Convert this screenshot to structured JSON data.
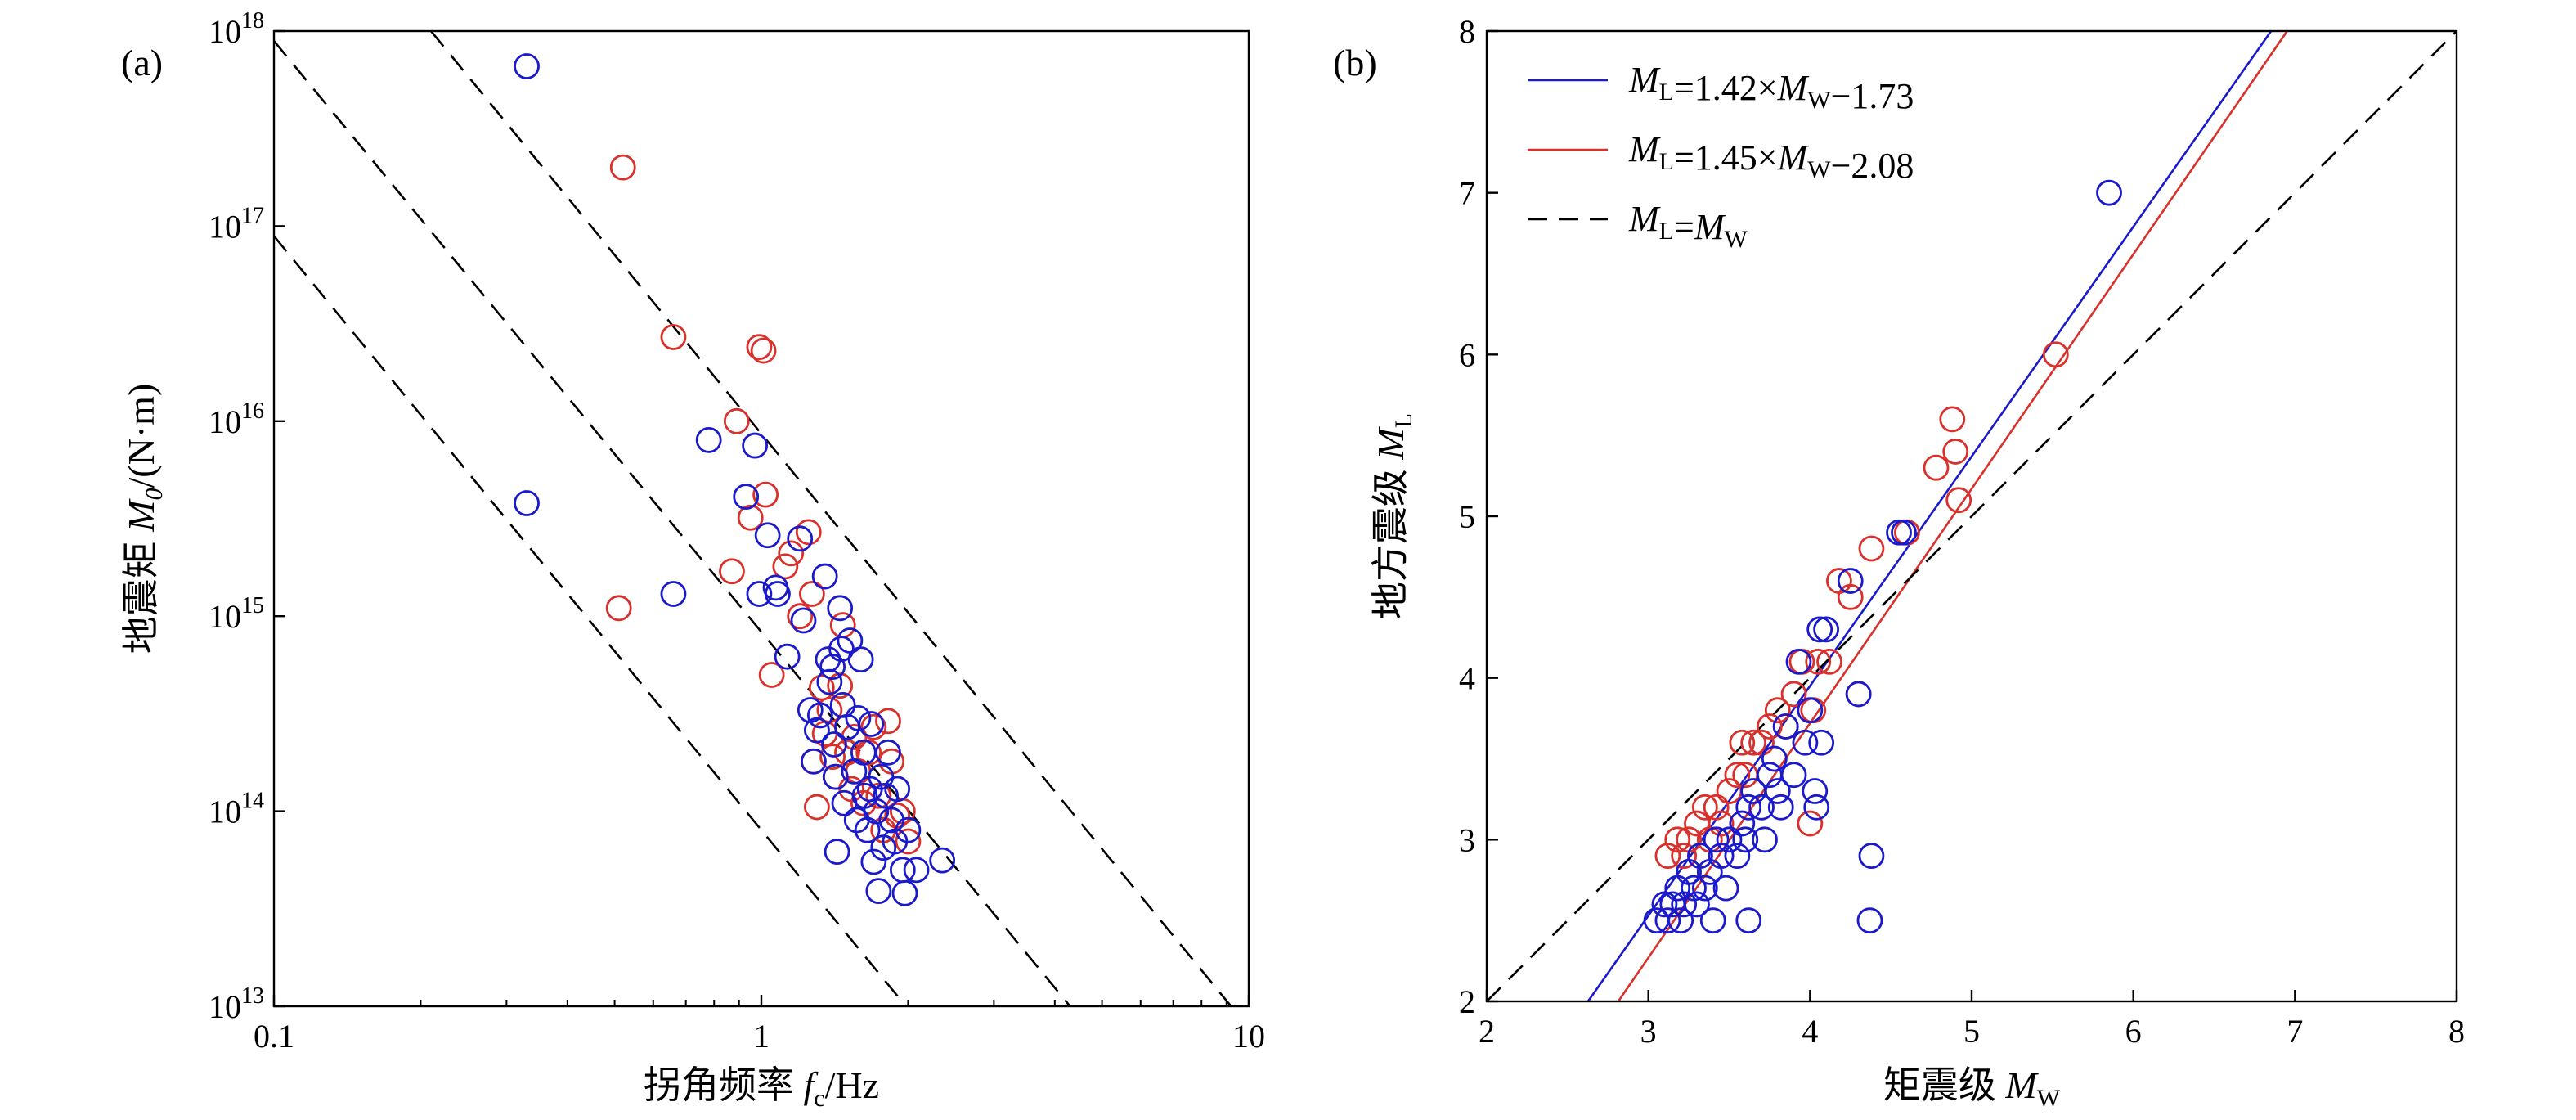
{
  "colors": {
    "blue": "#1a1acc",
    "red": "#d9302b",
    "black": "#000000"
  },
  "chart_data": [
    {
      "type": "scatter",
      "panel_label": "(a)",
      "xlabel": {
        "main": "拐角频率 ",
        "var": "f",
        "sub": "c",
        "unit": "/Hz"
      },
      "ylabel": {
        "main": "地震矩 ",
        "var": "M",
        "sub": "0",
        "unit": "/(N·m)"
      },
      "xscale": "log",
      "yscale": "log",
      "xlim": [
        0.1,
        10
      ],
      "ylim": [
        10000000000000.0,
        1e+18
      ],
      "x_tick_labels": [
        "0.1",
        "1",
        "10"
      ],
      "y_tick_labels": [
        {
          "base": "10",
          "exp": "13"
        },
        {
          "base": "10",
          "exp": "14"
        },
        {
          "base": "10",
          "exp": "15"
        },
        {
          "base": "10",
          "exp": "16"
        },
        {
          "base": "10",
          "exp": "17"
        },
        {
          "base": "10",
          "exp": "18"
        }
      ],
      "reference_lines": [
        {
          "style": "dashed",
          "points": [
            [
              0.1,
              8.9e+16
            ],
            [
              1.98,
              10000000000000.0
            ]
          ]
        },
        {
          "style": "dashed",
          "points": [
            [
              0.1,
              8.9e+17
            ],
            [
              4.3,
              10000000000000.0
            ]
          ]
        },
        {
          "style": "dashed",
          "points": [
            [
              0.21,
              1e+18
            ],
            [
              9.2,
              10000000000000.0
            ]
          ]
        }
      ],
      "series": [
        {
          "color": "blue",
          "points": [
            [
              0.33,
              6.6e+17
            ],
            [
              0.33,
              3800000000000000.0
            ],
            [
              0.66,
              1300000000000000.0
            ],
            [
              0.78,
              8000000000000000.0
            ],
            [
              0.93,
              4100000000000000.0
            ],
            [
              0.97,
              7500000000000000.0
            ],
            [
              0.99,
              1300000000000000.0
            ],
            [
              1.03,
              2600000000000000.0
            ],
            [
              1.07,
              1400000000000000.0
            ],
            [
              1.08,
              1300000000000000.0
            ],
            [
              1.13,
              620000000000000.0
            ],
            [
              1.2,
              2500000000000000.0
            ],
            [
              1.22,
              950000000000000.0
            ],
            [
              1.26,
              330000000000000.0
            ],
            [
              1.28,
              180000000000000.0
            ],
            [
              1.3,
              260000000000000.0
            ],
            [
              1.32,
              310000000000000.0
            ],
            [
              1.35,
              1600000000000000.0
            ],
            [
              1.37,
              600000000000000.0
            ],
            [
              1.38,
              460000000000000.0
            ],
            [
              1.4,
              550000000000000.0
            ],
            [
              1.41,
              220000000000000.0
            ],
            [
              1.42,
              150000000000000.0
            ],
            [
              1.43,
              62000000000000.0
            ],
            [
              1.45,
              1100000000000000.0
            ],
            [
              1.46,
              680000000000000.0
            ],
            [
              1.47,
              350000000000000.0
            ],
            [
              1.48,
              110000000000000.0
            ],
            [
              1.5,
              270000000000000.0
            ],
            [
              1.52,
              750000000000000.0
            ],
            [
              1.55,
              160000000000000.0
            ],
            [
              1.57,
              90000000000000.0
            ],
            [
              1.58,
              300000000000000.0
            ],
            [
              1.6,
              600000000000000.0
            ],
            [
              1.62,
              200000000000000.0
            ],
            [
              1.63,
              120000000000000.0
            ],
            [
              1.65,
              80000000000000.0
            ],
            [
              1.67,
              130000000000000.0
            ],
            [
              1.68,
              280000000000000.0
            ],
            [
              1.7,
              55000000000000.0
            ],
            [
              1.72,
              100000000000000.0
            ],
            [
              1.74,
              39000000000000.0
            ],
            [
              1.76,
              150000000000000.0
            ],
            [
              1.78,
              65000000000000.0
            ],
            [
              1.8,
              120000000000000.0
            ],
            [
              1.82,
              200000000000000.0
            ],
            [
              1.85,
              90000000000000.0
            ],
            [
              1.88,
              70000000000000.0
            ],
            [
              1.9,
              130000000000000.0
            ],
            [
              1.95,
              50000000000000.0
            ],
            [
              1.97,
              38000000000000.0
            ],
            [
              2.0,
              80000000000000.0
            ],
            [
              2.08,
              50000000000000.0
            ],
            [
              2.35,
              56000000000000.0
            ]
          ]
        },
        {
          "color": "red",
          "points": [
            [
              0.52,
              2e+17
            ],
            [
              0.51,
              1100000000000000.0
            ],
            [
              0.66,
              2.7e+16
            ],
            [
              0.87,
              1700000000000000.0
            ],
            [
              0.89,
              1e+16
            ],
            [
              0.95,
              3200000000000000.0
            ],
            [
              0.99,
              2.4e+16
            ],
            [
              1.01,
              2.3e+16
            ],
            [
              1.02,
              4200000000000000.0
            ],
            [
              1.05,
              500000000000000.0
            ],
            [
              1.12,
              1800000000000000.0
            ],
            [
              1.15,
              2100000000000000.0
            ],
            [
              1.2,
              1000000000000000.0
            ],
            [
              1.25,
              2700000000000000.0
            ],
            [
              1.27,
              1300000000000000.0
            ],
            [
              1.28,
              180000000000000.0
            ],
            [
              1.3,
              105000000000000.0
            ],
            [
              1.33,
              430000000000000.0
            ],
            [
              1.35,
              250000000000000.0
            ],
            [
              1.38,
              330000000000000.0
            ],
            [
              1.4,
              190000000000000.0
            ],
            [
              1.42,
              150000000000000.0
            ],
            [
              1.45,
              440000000000000.0
            ],
            [
              1.47,
              900000000000000.0
            ],
            [
              1.5,
              200000000000000.0
            ],
            [
              1.53,
              130000000000000.0
            ],
            [
              1.55,
              240000000000000.0
            ],
            [
              1.58,
              160000000000000.0
            ],
            [
              1.62,
              110000000000000.0
            ],
            [
              1.66,
              200000000000000.0
            ],
            [
              1.7,
              270000000000000.0
            ],
            [
              1.74,
              120000000000000.0
            ],
            [
              1.78,
              80000000000000.0
            ],
            [
              1.82,
              290000000000000.0
            ],
            [
              1.85,
              180000000000000.0
            ],
            [
              1.9,
              95000000000000.0
            ],
            [
              1.95,
              100000000000000.0
            ],
            [
              2.0,
              70000000000000.0
            ]
          ]
        }
      ]
    },
    {
      "type": "scatter",
      "panel_label": "(b)",
      "xlabel": {
        "main": "矩震级 ",
        "var": "M",
        "sub": "W"
      },
      "ylabel": {
        "main": "地方震级 ",
        "var": "M",
        "sub": "L"
      },
      "xlim": [
        2,
        8
      ],
      "ylim": [
        2,
        8
      ],
      "x_tick_labels": [
        "2",
        "3",
        "4",
        "5",
        "6",
        "7",
        "8"
      ],
      "y_tick_labels": [
        "2",
        "3",
        "4",
        "5",
        "6",
        "7",
        "8"
      ],
      "legend": {
        "position": "top-left",
        "entries": [
          {
            "color": "blue",
            "style": "solid",
            "segments": [
              [
                "M",
                "L"
              ],
              [
                "=1.42×",
                ""
              ],
              [
                "M",
                "W"
              ],
              [
                "−1.73",
                ""
              ]
            ]
          },
          {
            "color": "red",
            "style": "solid",
            "segments": [
              [
                "M",
                "L"
              ],
              [
                "=1.45×",
                ""
              ],
              [
                "M",
                "W"
              ],
              [
                "−2.08",
                ""
              ]
            ]
          },
          {
            "color": "black",
            "style": "dashed",
            "segments": [
              [
                "M",
                "L"
              ],
              [
                "=",
                ""
              ],
              [
                "M",
                "W"
              ]
            ]
          }
        ]
      },
      "fit_lines": [
        {
          "color": "blue",
          "style": "solid",
          "slope": 1.42,
          "intercept": -1.73
        },
        {
          "color": "red",
          "style": "solid",
          "slope": 1.45,
          "intercept": -2.08
        },
        {
          "color": "black",
          "style": "dashed",
          "slope": 1.0,
          "intercept": 0.0
        }
      ],
      "series": [
        {
          "color": "blue",
          "points": [
            [
              3.05,
              2.5
            ],
            [
              3.1,
              2.6
            ],
            [
              3.12,
              2.5
            ],
            [
              3.15,
              2.6
            ],
            [
              3.18,
              2.7
            ],
            [
              3.2,
              2.5
            ],
            [
              3.22,
              2.6
            ],
            [
              3.25,
              2.8
            ],
            [
              3.28,
              2.7
            ],
            [
              3.3,
              2.6
            ],
            [
              3.32,
              2.9
            ],
            [
              3.35,
              2.7
            ],
            [
              3.38,
              2.8
            ],
            [
              3.4,
              2.5
            ],
            [
              3.42,
              3.0
            ],
            [
              3.45,
              2.9
            ],
            [
              3.48,
              2.7
            ],
            [
              3.5,
              3.0
            ],
            [
              3.55,
              2.9
            ],
            [
              3.58,
              3.1
            ],
            [
              3.6,
              3.0
            ],
            [
              3.62,
              3.2
            ],
            [
              3.62,
              2.5
            ],
            [
              3.65,
              3.3
            ],
            [
              3.7,
              3.2
            ],
            [
              3.72,
              3.0
            ],
            [
              3.75,
              3.4
            ],
            [
              3.78,
              3.5
            ],
            [
              3.8,
              3.3
            ],
            [
              3.82,
              3.2
            ],
            [
              3.85,
              3.7
            ],
            [
              3.9,
              3.4
            ],
            [
              3.93,
              4.1
            ],
            [
              3.97,
              3.6
            ],
            [
              4.0,
              3.8
            ],
            [
              4.03,
              3.3
            ],
            [
              4.04,
              3.2
            ],
            [
              4.06,
              4.3
            ],
            [
              4.07,
              3.6
            ],
            [
              4.1,
              4.3
            ],
            [
              4.25,
              4.6
            ],
            [
              4.3,
              3.9
            ],
            [
              4.37,
              2.5
            ],
            [
              4.38,
              2.9
            ],
            [
              4.55,
              4.9
            ],
            [
              4.58,
              4.9
            ],
            [
              5.85,
              7.0
            ]
          ]
        },
        {
          "color": "red",
          "points": [
            [
              3.12,
              2.9
            ],
            [
              3.18,
              3.0
            ],
            [
              3.22,
              2.9
            ],
            [
              3.25,
              3.0
            ],
            [
              3.3,
              3.1
            ],
            [
              3.35,
              3.2
            ],
            [
              3.38,
              3.0
            ],
            [
              3.42,
              3.2
            ],
            [
              3.45,
              3.1
            ],
            [
              3.5,
              3.3
            ],
            [
              3.55,
              3.4
            ],
            [
              3.58,
              3.6
            ],
            [
              3.6,
              3.4
            ],
            [
              3.65,
              3.6
            ],
            [
              3.7,
              3.6
            ],
            [
              3.75,
              3.7
            ],
            [
              3.8,
              3.8
            ],
            [
              3.85,
              3.7
            ],
            [
              3.9,
              3.9
            ],
            [
              3.95,
              4.1
            ],
            [
              4.0,
              3.1
            ],
            [
              4.02,
              3.8
            ],
            [
              4.05,
              4.1
            ],
            [
              4.12,
              4.1
            ],
            [
              4.18,
              4.6
            ],
            [
              4.25,
              4.5
            ],
            [
              4.3,
              3.9
            ],
            [
              4.38,
              4.8
            ],
            [
              4.6,
              4.9
            ],
            [
              4.78,
              5.3
            ],
            [
              4.88,
              5.6
            ],
            [
              4.9,
              5.4
            ],
            [
              4.92,
              5.1
            ],
            [
              5.52,
              6.0
            ]
          ]
        }
      ]
    }
  ]
}
